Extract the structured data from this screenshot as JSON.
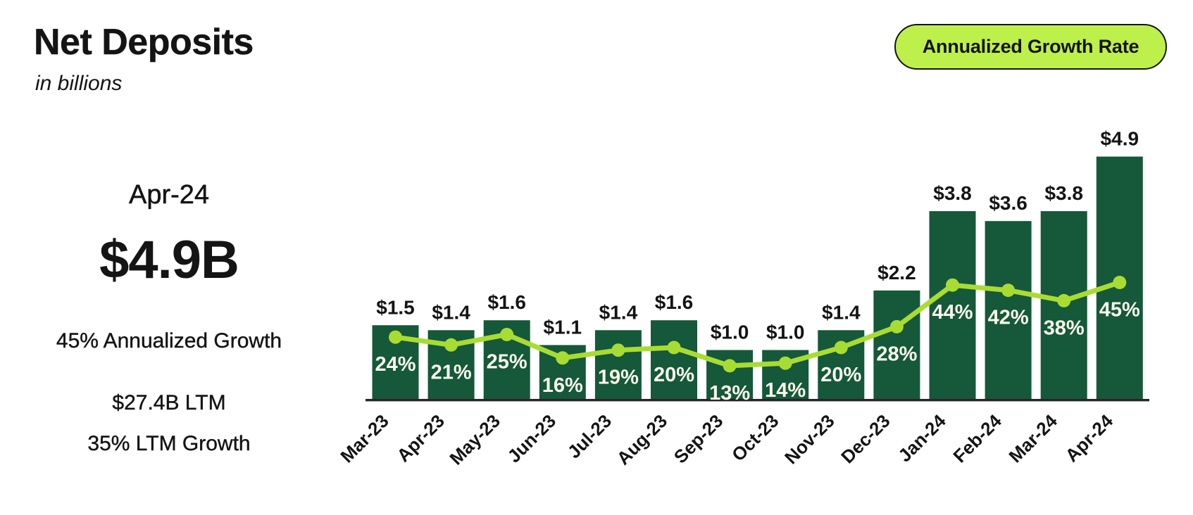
{
  "header": {
    "title": "Net Deposits",
    "subtitle": "in billions",
    "badge_label": "Annualized Growth Rate"
  },
  "summary": {
    "period": "Apr-24",
    "value": "$4.9B",
    "annualized_growth": "45% Annualized Growth",
    "ltm_value": "$27.4B LTM",
    "ltm_growth": "35% LTM Growth"
  },
  "colors": {
    "bar": "#15583A",
    "line": "#A9DC32",
    "badge_fill": "#BDF04B",
    "badge_border": "#141414",
    "text": "#141414",
    "pct_label_text": "#FBFBEC",
    "axis": "#262626"
  },
  "chart_data": {
    "type": "combo",
    "categories": [
      "Mar-23",
      "Apr-23",
      "May-23",
      "Jun-23",
      "Jul-23",
      "Aug-23",
      "Sep-23",
      "Oct-23",
      "Nov-23",
      "Dec-23",
      "Jan-24",
      "Feb-24",
      "Mar-24",
      "Apr-24"
    ],
    "series": [
      {
        "name": "Net Deposits",
        "type": "bar",
        "unit": "$B",
        "values": [
          1.5,
          1.4,
          1.6,
          1.1,
          1.4,
          1.6,
          1.0,
          1.0,
          1.4,
          2.2,
          3.8,
          3.6,
          3.8,
          4.9
        ],
        "labels": [
          "$1.5",
          "$1.4",
          "$1.6",
          "$1.1",
          "$1.4",
          "$1.6",
          "$1.0",
          "$1.0",
          "$1.4",
          "$2.2",
          "$3.8",
          "$3.6",
          "$3.8",
          "$4.9"
        ]
      },
      {
        "name": "Annualized Growth Rate",
        "type": "line",
        "unit": "%",
        "values": [
          24,
          21,
          25,
          16,
          19,
          20,
          13,
          14,
          20,
          28,
          44,
          42,
          38,
          45
        ],
        "labels": [
          "24%",
          "21%",
          "25%",
          "16%",
          "19%",
          "20%",
          "13%",
          "14%",
          "20%",
          "28%",
          "44%",
          "42%",
          "38%",
          "45%"
        ]
      }
    ],
    "title": "Net Deposits in billions",
    "xlabel": "",
    "ylabel": "",
    "bar_axis_range": [
      0,
      4.9
    ],
    "line_axis_range": [
      0,
      45
    ],
    "grid": false,
    "legend_position": "top-right badge"
  }
}
